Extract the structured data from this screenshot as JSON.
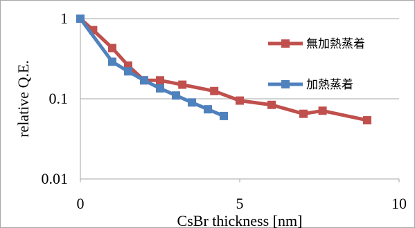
{
  "chart_data": {
    "type": "line",
    "title": "",
    "xlabel": "CsBr thickness [nm]",
    "ylabel": "relative Q.E.",
    "xlim": [
      0,
      10
    ],
    "ylim": [
      0.01,
      1
    ],
    "yscale": "log",
    "x_ticks": [
      "0",
      "5",
      "10"
    ],
    "y_ticks": [
      "0.01",
      "0.1",
      "1"
    ],
    "grid": "horizontal",
    "legend": "right",
    "series": [
      {
        "name": "無加熱蒸着",
        "color": "#c0504d",
        "marker": "square",
        "x": [
          0,
          0.4,
          1.0,
          1.5,
          2.0,
          2.5,
          3.2,
          4.2,
          5.0,
          6.0,
          7.0,
          7.6,
          9.0
        ],
        "y": [
          1.0,
          0.72,
          0.43,
          0.26,
          0.17,
          0.17,
          0.15,
          0.125,
          0.095,
          0.084,
          0.065,
          0.071,
          0.054
        ]
      },
      {
        "name": "加熱蒸着",
        "color": "#4f81bd",
        "marker": "square",
        "x": [
          0,
          1.0,
          1.5,
          2.0,
          2.5,
          3.0,
          3.5,
          4.0,
          4.5
        ],
        "y": [
          1.0,
          0.29,
          0.22,
          0.17,
          0.135,
          0.11,
          0.09,
          0.074,
          0.061
        ]
      }
    ]
  }
}
